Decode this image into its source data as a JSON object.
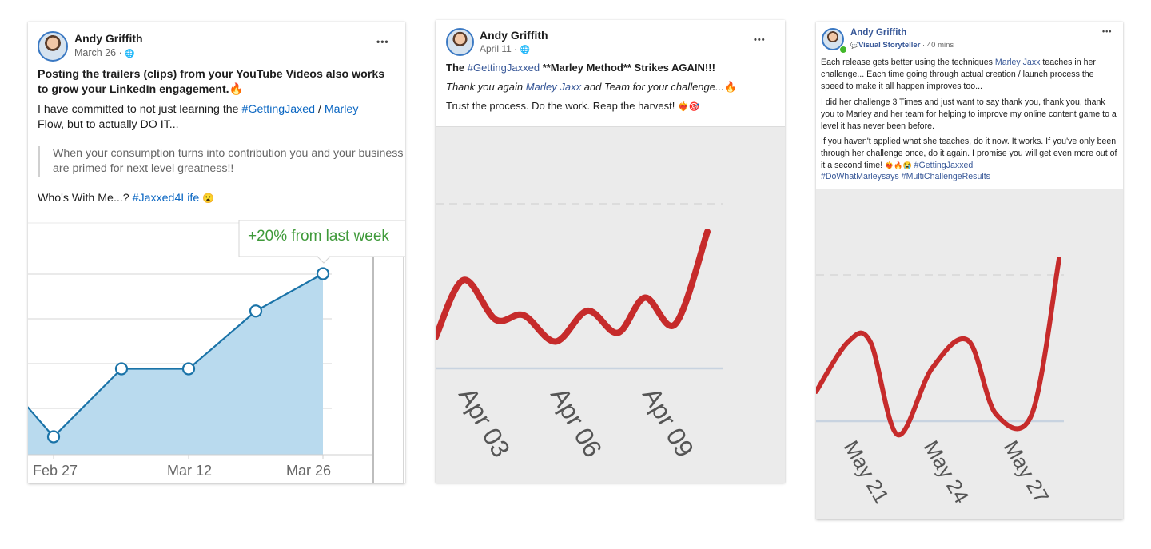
{
  "post1": {
    "author": "Andy Griffith",
    "date": "March 26",
    "globe": "🌐",
    "more": "•••",
    "headline": "Posting the trailers (clips) from your YouTube Videos also works to grow your LinkedIn engagement.",
    "headline_emoji": "🔥",
    "body_pre": "I have committed to not just learning the ",
    "body_tag1": "#GettingJaxed",
    "body_sep": " / ",
    "body_tag2": "Marley",
    "body_post": "Flow, but to actually DO IT...",
    "quote": "When your consumption turns into contribution you and your business are primed for next level greatness!!",
    "closing_pre": "Who's With Me...? ",
    "closing_tag": "#Jaxxed4Life",
    "closing_emoji": "😮",
    "chart_tooltip": "+20% from last week",
    "colors": {
      "link": "#0a66c2",
      "series": "#1a73a8",
      "fill": "#b9daee",
      "tooltip_text": "#3f9a3a"
    }
  },
  "post2": {
    "author": "Andy Griffith",
    "date": "April 11",
    "globe": "🌐",
    "more": "•••",
    "line1_pre": "The ",
    "line1_tag": "#GettingJaxxed",
    "line1_post": " **Marley Method** Strikes AGAIN!!!",
    "line2_pre": "Thank you again ",
    "line2_name": "Marley Jaxx",
    "line2_post": " and Team for your challenge...",
    "line2_emoji": "🔥",
    "line3": "Trust the process. Do the work. Reap the harvest! ",
    "line3_emoji": "❤️‍🔥🎯",
    "colors": {
      "series": "#c62b2b",
      "bg": "#ebebeb"
    }
  },
  "post3": {
    "author": "Andy Griffith",
    "badge_icon": "💬",
    "badge": "Visual Storyteller",
    "time": " · 40 mins",
    "more": "•••",
    "p1_pre": "Each release gets better using the techniques ",
    "p1_name": "Marley Jaxx",
    "p1_post": " teaches in her challenge... Each time going through actual creation / launch process the speed to make it all happen improves too...",
    "p2": "I did her challenge 3 Times and just want to say thank you, thank you, thank you to Marley and her team for helping to improve my online content game to a level it has never been before.",
    "p3_pre": "If you haven't applied what she teaches, do it now. It works. If you've only been through her challenge once, do it again. I promise you will get even more out of it a second time! ",
    "p3_emoji": "❤️‍🔥🔥😭",
    "p3_tag1": " #GettingJaxxed",
    "p3_tag2": "#DoWhatMarleysays",
    "p3_tag3": " #MultiChallengeResults",
    "colors": {
      "series": "#c62b2b",
      "bg": "#ebebeb"
    }
  },
  "chart_data": [
    {
      "type": "area",
      "title": "",
      "x_tick_labels": [
        "Feb 27",
        "Mar 12",
        "Mar 26"
      ],
      "values": [
        1.6,
        0.9,
        1.9,
        1.9,
        2.75,
        3.3
      ],
      "annotations": [
        "+20% from last week"
      ],
      "grid": true
    },
    {
      "type": "line",
      "title": "",
      "x_tick_labels": [
        "Apr 03",
        "Apr 06",
        "Apr 09"
      ],
      "values": [
        0.8,
        2.1,
        1.2,
        1.3,
        0.7,
        1.4,
        0.9,
        1.7,
        1.1,
        3.2
      ],
      "grid": true
    },
    {
      "type": "line",
      "title": "",
      "x_tick_labels": [
        "May 21",
        "May 24",
        "May 27"
      ],
      "values": [
        0.8,
        1.7,
        0.2,
        1.4,
        0.9,
        3.0
      ],
      "grid": true
    }
  ]
}
